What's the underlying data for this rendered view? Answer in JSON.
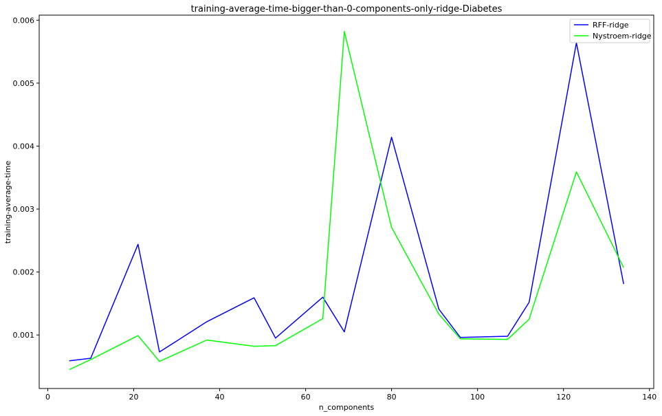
{
  "chart_data": {
    "type": "line",
    "title": "training-average-time-bigger-than-0-components-only-ridge-Diabetes",
    "xlabel": "n_components",
    "ylabel": "training-average-time",
    "xlim": [
      -2,
      141
    ],
    "ylim": [
      0.00015,
      0.00608
    ],
    "xticks": [
      0,
      20,
      40,
      60,
      80,
      100,
      120,
      140
    ],
    "xtick_labels": [
      "0",
      "20",
      "40",
      "60",
      "80",
      "100",
      "120",
      "140"
    ],
    "yticks": [
      0.001,
      0.002,
      0.003,
      0.004,
      0.005,
      0.006
    ],
    "ytick_labels": [
      "0.001",
      "0.002",
      "0.003",
      "0.004",
      "0.005",
      "0.006"
    ],
    "grid": false,
    "legend_position": "top-right",
    "x": [
      5,
      10,
      21,
      26,
      37,
      48,
      53,
      64,
      69,
      80,
      91,
      96,
      107,
      112,
      123,
      134
    ],
    "series": [
      {
        "name": "RFF-ridge",
        "color": "#0000ff",
        "values": [
          0.00059,
          0.00063,
          0.00244,
          0.00073,
          0.00121,
          0.00159,
          0.00095,
          0.0016,
          0.00105,
          0.00414,
          0.00141,
          0.00096,
          0.00098,
          0.00152,
          0.00564,
          0.00181
        ]
      },
      {
        "name": "Nystroem-ridge",
        "color": "#00ff00",
        "values": [
          0.00045,
          0.00061,
          0.00099,
          0.00058,
          0.00092,
          0.00082,
          0.00083,
          0.00126,
          0.00582,
          0.00271,
          0.00133,
          0.00094,
          0.00093,
          0.00125,
          0.00359,
          0.00207
        ]
      }
    ]
  }
}
